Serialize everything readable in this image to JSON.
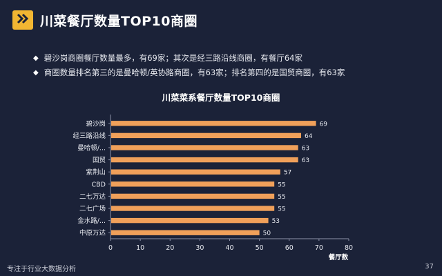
{
  "slide": {
    "title": "川菜餐厅数量TOP10商圈",
    "bullets": [
      "碧沙岗商圈餐厅数量最多，有69家；其次是经三路沿线商圈，有餐厅64家",
      "商圈数量排名第三的是曼哈顿/英协路商圈，有63家；排名第四的是国贸商圈，有63家"
    ],
    "footer_left": "专注于行业大数据分析",
    "page_number": "37"
  },
  "colors": {
    "background": "#1b2238",
    "accent": "#f2b632",
    "bar": "#f0a05a",
    "axis": "#8c92a8"
  },
  "icons": {
    "title_badge": "double-chevron-right-icon",
    "bullet": "diamond-bullet-icon"
  },
  "chart_data": {
    "type": "bar",
    "orientation": "horizontal",
    "title": "川菜菜系餐厅数量TOP10商圈",
    "xlabel": "餐厅数",
    "ylabel": "",
    "categories": [
      "碧沙岗",
      "经三路沿线",
      "曼哈顿/...",
      "国贸",
      "紫荆山",
      "CBD",
      "二七万达",
      "二七广场",
      "金水路/...",
      "中原万达"
    ],
    "values": [
      69,
      64,
      63,
      63,
      57,
      55,
      55,
      55,
      53,
      50
    ],
    "xlim": [
      0,
      80
    ],
    "xticks": [
      0,
      10,
      20,
      30,
      40,
      50,
      60,
      70,
      80
    ],
    "data_labels": true,
    "grid": false,
    "legend": "none"
  }
}
